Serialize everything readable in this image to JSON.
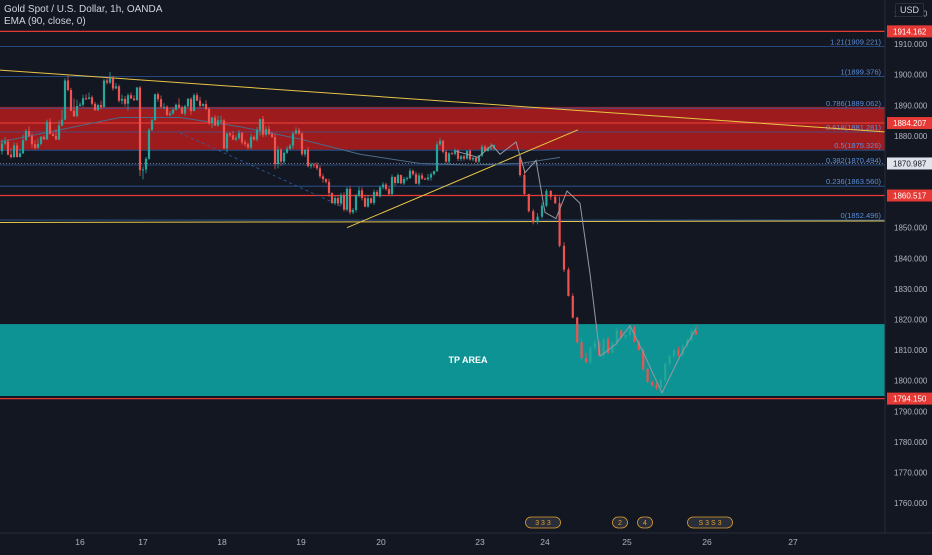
{
  "header": {
    "symbol_line": "Gold Spot / U.S. Dollar, 1h, OANDA",
    "indicator_line": "EMA (90, close, 0)",
    "currency": "USD"
  },
  "colors": {
    "background": "#131722",
    "up": "#26a69a",
    "down": "#ef5350",
    "resistance_zone": "#b71c1c",
    "tp_zone": "#0d9a9a",
    "trendline": "#e8c547",
    "level_line": "#e53935",
    "fib_line": "#2f5fa7",
    "ema": "#4a6a8a",
    "axis_text": "#b2b5be"
  },
  "chart_data": {
    "type": "candlestick",
    "y_axis": {
      "range": [
        1752,
        1928
      ],
      "ticks": [
        1760,
        1770,
        1780,
        1790,
        1800,
        1810,
        1820,
        1830,
        1840,
        1850,
        1860,
        1870,
        1880,
        1890,
        1900,
        1910,
        1920
      ]
    },
    "x_axis": {
      "ticks": [
        "16",
        "17",
        "18",
        "19",
        "20",
        "23",
        "24",
        "25",
        "26",
        "27"
      ]
    },
    "price_tags": [
      {
        "label": "1914.162",
        "value": 1914.162,
        "color": "#e53935"
      },
      {
        "label": "1884.207",
        "value": 1884.207,
        "color": "#e53935"
      },
      {
        "label": "1870.987",
        "value": 1870.987,
        "color": "#e0e3eb"
      },
      {
        "label": "1860.517",
        "value": 1860.517,
        "color": "#e53935"
      },
      {
        "label": "1794.150",
        "value": 1794.15,
        "color": "#e53935"
      }
    ],
    "fib_levels": [
      {
        "label": "1.21(1909.221)",
        "value": 1909.221
      },
      {
        "label": "1(1899.376)",
        "value": 1899.376
      },
      {
        "label": "0.786(1889.062)",
        "value": 1889.062
      },
      {
        "label": "0.618(1881.281)",
        "value": 1881.281
      },
      {
        "label": "0.5(1875.326)",
        "value": 1875.326
      },
      {
        "label": "0.382(1870.494)",
        "value": 1870.494
      },
      {
        "label": "0.236(1863.560)",
        "value": 1863.56
      },
      {
        "label": "0(1852.496)",
        "value": 1852.496
      }
    ],
    "zones": [
      {
        "name": "resistance",
        "low": 1875.5,
        "high": 1889.5
      },
      {
        "name": "tp",
        "low": 1795,
        "high": 1818.5,
        "label": "TP AREA"
      }
    ],
    "event_badges": [
      "3 3 3",
      "2",
      "4",
      "S 3 S 3"
    ],
    "candles": {
      "seg1": {
        "o": [
          1875.0,
          1877.5,
          1878.1,
          1873.9,
          1873.1,
          1876.9,
          1873.1,
          1874.3,
          1878.6,
          1881.6,
          1880.0,
          1877.3,
          1876.1,
          1877.4,
          1879.7,
          1878.9,
          1884.6,
          1880.6,
          1880.0,
          1878.8,
          1883.4,
          1885.3,
          1898.1,
          1895.0,
          1888.2,
          1886.4,
          1889.8,
          1890.2,
          1892.3,
          1892.0,
          1892.6,
          1890.5,
          1888.4,
          1890.1,
          1889.4,
          1898.1,
          1897.4,
          1898.8,
          1895.5,
          1896.2,
          1891.5,
          1892.1,
          1890.5,
          1893.3,
          1892.2,
          1891.7,
          1895.8,
          1868.8,
          1869.0,
          1872.5,
          1881.9,
          1885.1,
          1893.6,
          1892.0,
          1889.5,
          1889.5,
          1886.8,
          1887.3,
          1888.5,
          1890.2,
          1889.3,
          1887.3,
          1889.7,
          1892.1,
          1888.1,
          1893.3,
          1891.5,
          1889.8,
          1890.4,
          1888.8,
          1884.2,
          1886.0,
          1883.4,
          1885.1,
          1885.1,
          1875.9,
          1880.8,
          1880.2,
          1878.8,
          1879.3,
          1881.0,
          1877.9,
          1877.3,
          1876.2,
          1879.7,
          1878.8,
          1881.9,
          1885.5,
          1880.4,
          1882.2,
          1880.6,
          1879.6,
          1870.8,
          1875.5,
          1871.6,
          1874.5,
          1875.8,
          1876.8,
          1880.8,
          1881.8,
          1880.8,
          1874.0,
          1875.5,
          1870.1,
          1870.7,
          1870.6,
          1869.4,
          1866.8,
          1865.9,
          1865.0,
          1861.3,
          1858.1,
          1859.7,
          1857.9,
          1860.6,
          1855.9,
          1862.7,
          1855.0,
          1855.8,
          1860.4,
          1862.2,
          1859.7,
          1856.9,
          1859.6,
          1858.1,
          1861.7,
          1860.3,
          1863.2,
          1864.1,
          1862.6,
          1861.0,
          1866.6,
          1864.6,
          1867.2,
          1864.5,
          1865.9,
          1866.2,
          1868.6,
          1867.5,
          1864.4,
          1867.1,
          1866.0,
          1865.8,
          1866.4,
          1867.5,
          1868.5,
          1877.2,
          1878.4,
          1874.8,
          1871.6,
          1874.3,
          1874.1,
          1875.3,
          1872.5,
          1873.3,
          1872.6,
          1875.1,
          1872.3,
          1872.9,
          1871.6,
          1873.6,
          1876.5,
          1875.1,
          1876.1,
          1876.1
        ],
        "h": [
          1878.9,
          1879.6,
          1879.0,
          1876.0,
          1877.9,
          1877.8,
          1875.8,
          1880.4,
          1882.2,
          1883.1,
          1881.0,
          1878.6,
          1879.1,
          1880.0,
          1880.2,
          1885.3,
          1885.8,
          1881.3,
          1882.1,
          1885.0,
          1888.5,
          1898.9,
          1899.7,
          1895.7,
          1892.2,
          1891.8,
          1891.0,
          1893.4,
          1893.6,
          1894.2,
          1893.2,
          1891.1,
          1890.6,
          1891.5,
          1898.6,
          1899.3,
          1900.9,
          1899.6,
          1897.3,
          1896.7,
          1893.5,
          1893.0,
          1893.9,
          1894.2,
          1893.3,
          1896.0,
          1896.3,
          1869.9,
          1873.1,
          1882.6,
          1885.7,
          1893.8,
          1894.2,
          1893.2,
          1890.7,
          1890.0,
          1888.1,
          1889.2,
          1890.6,
          1892.3,
          1889.9,
          1890.2,
          1892.4,
          1892.6,
          1893.9,
          1894.1,
          1892.8,
          1890.7,
          1891.6,
          1889.3,
          1886.3,
          1886.8,
          1886.6,
          1886.6,
          1885.6,
          1881.1,
          1881.2,
          1881.6,
          1880.2,
          1881.9,
          1881.3,
          1878.7,
          1877.9,
          1880.7,
          1880.2,
          1882.9,
          1885.7,
          1886.5,
          1883.1,
          1883.3,
          1881.3,
          1880.6,
          1876.6,
          1876.1,
          1875.0,
          1876.6,
          1877.4,
          1881.4,
          1882.8,
          1882.6,
          1881.3,
          1875.5,
          1876.4,
          1871.3,
          1871.2,
          1871.4,
          1870.2,
          1867.6,
          1866.1,
          1866.0,
          1861.6,
          1860.5,
          1860.5,
          1861.4,
          1861.6,
          1863.3,
          1863.6,
          1856.4,
          1861.0,
          1863.4,
          1863.2,
          1860.5,
          1860.7,
          1859.9,
          1862.5,
          1862.3,
          1863.7,
          1864.9,
          1864.7,
          1863.4,
          1867.4,
          1866.7,
          1867.8,
          1867.4,
          1866.6,
          1866.7,
          1869.4,
          1869.0,
          1868.3,
          1867.9,
          1867.9,
          1866.4,
          1867.6,
          1868.1,
          1868.6,
          1878.1,
          1879.3,
          1878.7,
          1875.5,
          1874.7,
          1874.9,
          1875.9,
          1875.6,
          1873.7,
          1873.8,
          1875.3,
          1875.7,
          1873.0,
          1873.3,
          1873.8,
          1877.2,
          1877.1,
          1876.5,
          1877.6,
          1877.2
        ],
        "l": [
          1873.9,
          1877.0,
          1873.6,
          1872.6,
          1872.8,
          1872.9,
          1873.0,
          1874.1,
          1878.3,
          1879.6,
          1876.1,
          1875.5,
          1875.7,
          1876.9,
          1878.7,
          1878.6,
          1880.6,
          1879.9,
          1878.6,
          1878.6,
          1883.1,
          1885.1,
          1894.6,
          1888.0,
          1886.2,
          1886.3,
          1889.6,
          1889.6,
          1891.7,
          1892.1,
          1889.9,
          1888.2,
          1888.1,
          1888.7,
          1889.4,
          1896.8,
          1896.9,
          1894.8,
          1895.3,
          1890.9,
          1890.3,
          1889.6,
          1888.3,
          1892.1,
          1891.4,
          1891.5,
          1866.9,
          1865.8,
          1867.8,
          1872.2,
          1881.7,
          1885.0,
          1891.1,
          1888.9,
          1888.7,
          1886.5,
          1886.4,
          1887.0,
          1888.3,
          1888.9,
          1887.1,
          1886.6,
          1889.3,
          1886.9,
          1888.1,
          1891.4,
          1889.3,
          1889.6,
          1888.4,
          1883.6,
          1882.5,
          1883.2,
          1883.0,
          1884.1,
          1875.6,
          1874.6,
          1879.7,
          1878.6,
          1878.2,
          1878.7,
          1877.2,
          1876.5,
          1875.6,
          1875.6,
          1878.5,
          1878.2,
          1880.1,
          1879.6,
          1879.8,
          1880.2,
          1879.3,
          1869.1,
          1869.4,
          1870.3,
          1870.7,
          1874.1,
          1875.5,
          1875.7,
          1880.4,
          1880.3,
          1873.4,
          1873.2,
          1869.7,
          1869.3,
          1869.5,
          1868.8,
          1866.1,
          1864.7,
          1864.5,
          1860.1,
          1857.8,
          1857.4,
          1857.1,
          1857.4,
          1855.3,
          1855.3,
          1854.3,
          1854.4,
          1855.0,
          1859.9,
          1858.9,
          1856.7,
          1856.5,
          1857.8,
          1857.4,
          1860.3,
          1859.8,
          1862.5,
          1862.1,
          1860.5,
          1860.3,
          1863.8,
          1864.4,
          1864.2,
          1864.0,
          1865.3,
          1865.9,
          1867.0,
          1864.3,
          1863.8,
          1865.7,
          1865.7,
          1865.4,
          1865.4,
          1867.1,
          1868.2,
          1876.8,
          1874.3,
          1871.0,
          1870.8,
          1873.9,
          1873.6,
          1871.8,
          1871.7,
          1871.9,
          1872.2,
          1871.9,
          1871.7,
          1871.2,
          1871.1,
          1873.1,
          1874.9,
          1874.8,
          1875.3,
          1875.3
        ],
        "c": [
          1877.5,
          1878.1,
          1873.9,
          1873.1,
          1876.9,
          1873.1,
          1874.3,
          1878.6,
          1881.6,
          1880.0,
          1877.3,
          1876.1,
          1877.4,
          1879.7,
          1878.9,
          1884.6,
          1880.6,
          1880.0,
          1878.8,
          1883.4,
          1885.3,
          1898.1,
          1895.0,
          1888.2,
          1886.4,
          1889.8,
          1890.2,
          1892.3,
          1892.0,
          1892.6,
          1890.5,
          1888.4,
          1890.1,
          1889.4,
          1898.1,
          1897.4,
          1898.8,
          1895.5,
          1896.2,
          1891.5,
          1892.1,
          1890.5,
          1893.3,
          1892.2,
          1891.7,
          1895.8,
          1868.8,
          1869.0,
          1872.5,
          1881.9,
          1885.1,
          1893.6,
          1892.0,
          1889.5,
          1889.5,
          1886.8,
          1887.3,
          1888.5,
          1890.2,
          1889.3,
          1887.3,
          1889.7,
          1892.1,
          1888.1,
          1893.3,
          1891.5,
          1889.8,
          1890.4,
          1888.8,
          1884.2,
          1886.0,
          1883.4,
          1885.1,
          1885.1,
          1875.9,
          1880.8,
          1880.2,
          1878.8,
          1879.3,
          1881.0,
          1877.9,
          1877.3,
          1876.2,
          1879.7,
          1878.8,
          1881.9,
          1885.5,
          1880.4,
          1882.2,
          1880.6,
          1879.6,
          1870.8,
          1875.5,
          1871.6,
          1874.5,
          1875.8,
          1876.8,
          1880.8,
          1881.8,
          1880.8,
          1874.0,
          1875.5,
          1870.1,
          1870.7,
          1870.6,
          1869.4,
          1866.8,
          1865.9,
          1865.0,
          1861.3,
          1858.1,
          1859.7,
          1857.9,
          1860.6,
          1855.9,
          1862.7,
          1855.0,
          1855.8,
          1860.4,
          1862.2,
          1859.7,
          1856.9,
          1859.6,
          1858.1,
          1861.7,
          1860.3,
          1863.2,
          1864.1,
          1862.6,
          1861.0,
          1866.6,
          1864.6,
          1867.2,
          1864.5,
          1865.9,
          1866.2,
          1868.6,
          1867.5,
          1864.4,
          1867.1,
          1866.0,
          1865.8,
          1866.4,
          1867.5,
          1868.5,
          1877.2,
          1878.4,
          1874.8,
          1871.6,
          1874.3,
          1874.1,
          1875.3,
          1872.5,
          1873.3,
          1872.6,
          1875.1,
          1872.3,
          1872.9,
          1871.6,
          1873.6,
          1876.5,
          1875.1,
          1876.1,
          1876.1,
          1877.0
        ]
      },
      "seg2": {
        "o": [
          1873.0,
          1867.2,
          1861.0,
          1855.4,
          1851.8,
          1853.6,
          1857.2,
          1862.0,
          1860.1,
          1858.0,
          1844.1,
          1836.3,
          1827.7,
          1820.6,
          1812.6,
          1807.4,
          1806.0,
          1810.7,
          1812.4,
          1808.4,
          1813.5,
          1809.1,
          1812.4,
          1816.4,
          1814.1,
          1814.9,
          1817.4,
          1812.8,
          1810.0,
          1803.8,
          1799.6,
          1798.5,
          1797.7,
          1800.2,
          1805.5,
          1808.1,
          1810.0,
          1808.5,
          1811.5,
          1813.3,
          1816.3
        ],
        "h": [
          1873.4,
          1868.9,
          1861.1,
          1856.1,
          1854.8,
          1858.2,
          1862.6,
          1862.3,
          1860.8,
          1860.1,
          1845.2,
          1837.0,
          1828.5,
          1820.9,
          1813.9,
          1809.2,
          1811.4,
          1813.3,
          1813.4,
          1813.9,
          1814.5,
          1812.8,
          1817.4,
          1817.0,
          1815.1,
          1818.0,
          1818.0,
          1813.2,
          1810.9,
          1804.2,
          1800.2,
          1799.3,
          1800.7,
          1806.1,
          1808.6,
          1810.5,
          1811.1,
          1812.0,
          1814.0,
          1817.0,
          1818.1
        ],
        "l": [
          1866.7,
          1860.5,
          1855.0,
          1851.1,
          1851.1,
          1853.0,
          1856.7,
          1859.1,
          1857.8,
          1843.6,
          1835.5,
          1827.5,
          1820.4,
          1812.2,
          1806.8,
          1805.7,
          1805.4,
          1810.0,
          1807.9,
          1807.5,
          1808.7,
          1808.8,
          1811.7,
          1813.9,
          1813.6,
          1814.6,
          1812.5,
          1809.8,
          1803.1,
          1799.2,
          1798.0,
          1797.0,
          1797.5,
          1799.4,
          1805.0,
          1807.6,
          1807.8,
          1807.7,
          1810.9,
          1812.8,
          1815.7
        ],
        "c": [
          1867.2,
          1861.0,
          1855.4,
          1851.8,
          1853.6,
          1857.2,
          1862.0,
          1860.1,
          1858.0,
          1844.1,
          1836.3,
          1827.7,
          1820.6,
          1812.6,
          1807.4,
          1806.0,
          1810.7,
          1812.4,
          1808.4,
          1813.5,
          1809.1,
          1812.4,
          1816.4,
          1814.1,
          1814.9,
          1817.4,
          1812.8,
          1810.0,
          1803.8,
          1799.6,
          1798.5,
          1797.7,
          1800.2,
          1805.5,
          1808.1,
          1810.0,
          1808.5,
          1811.5,
          1813.3,
          1816.3,
          1815.0
        ]
      }
    }
  }
}
